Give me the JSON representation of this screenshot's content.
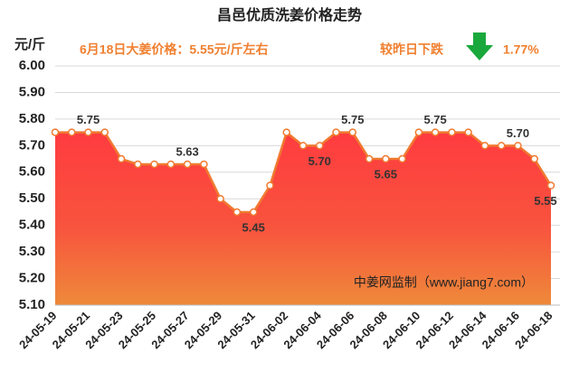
{
  "chart_data": {
    "type": "area",
    "title": "昌邑优质洗姜价格走势",
    "y_label": "元/斤",
    "subtitle": "6月18日大姜价格：5.55元/斤左右",
    "change_text": "较昨日下跌",
    "change_value": "1.77%",
    "watermark": "中姜网监制（www.jiang7.com）",
    "categories": [
      "24-05-19",
      null,
      "24-05-21",
      null,
      "24-05-23",
      null,
      "24-05-25",
      null,
      "24-05-27",
      null,
      "24-05-29",
      null,
      "24-05-31",
      null,
      "24-06-02",
      null,
      "24-06-04",
      null,
      "24-06-06",
      null,
      "24-06-08",
      null,
      "24-06-10",
      null,
      "24-06-12",
      null,
      "24-06-14",
      null,
      "24-06-16",
      null,
      "24-06-18"
    ],
    "values": [
      5.75,
      5.75,
      5.75,
      5.75,
      5.65,
      5.63,
      5.63,
      5.63,
      5.63,
      5.63,
      5.5,
      5.45,
      5.45,
      5.55,
      5.75,
      5.7,
      5.7,
      5.75,
      5.75,
      5.65,
      5.65,
      5.65,
      5.75,
      5.75,
      5.75,
      5.75,
      5.7,
      5.7,
      5.7,
      5.65,
      5.55
    ],
    "value_labels": [
      null,
      null,
      "5.75",
      null,
      null,
      null,
      null,
      null,
      "5.63",
      null,
      null,
      null,
      "5.45",
      null,
      null,
      null,
      "5.70",
      null,
      "5.75",
      null,
      "5.65",
      null,
      null,
      "5.75",
      null,
      null,
      null,
      null,
      "5.70",
      null,
      "5.55"
    ],
    "color": "#f07a30",
    "ylim": [
      5.1,
      6.0
    ],
    "yticks": [
      {
        "value": 5.1,
        "label": "5.10"
      },
      {
        "value": 5.2,
        "label": "5.20"
      },
      {
        "value": 5.3,
        "label": "5.30"
      },
      {
        "value": 5.4,
        "label": "5.40"
      },
      {
        "value": 5.5,
        "label": "5.50"
      },
      {
        "value": 5.6,
        "label": "5.60"
      },
      {
        "value": 5.7,
        "label": "5.70"
      },
      {
        "value": 5.8,
        "label": "5.80"
      },
      {
        "value": 5.9,
        "label": "5.90"
      },
      {
        "value": 6.0,
        "label": "6.00"
      }
    ],
    "grid": true
  }
}
